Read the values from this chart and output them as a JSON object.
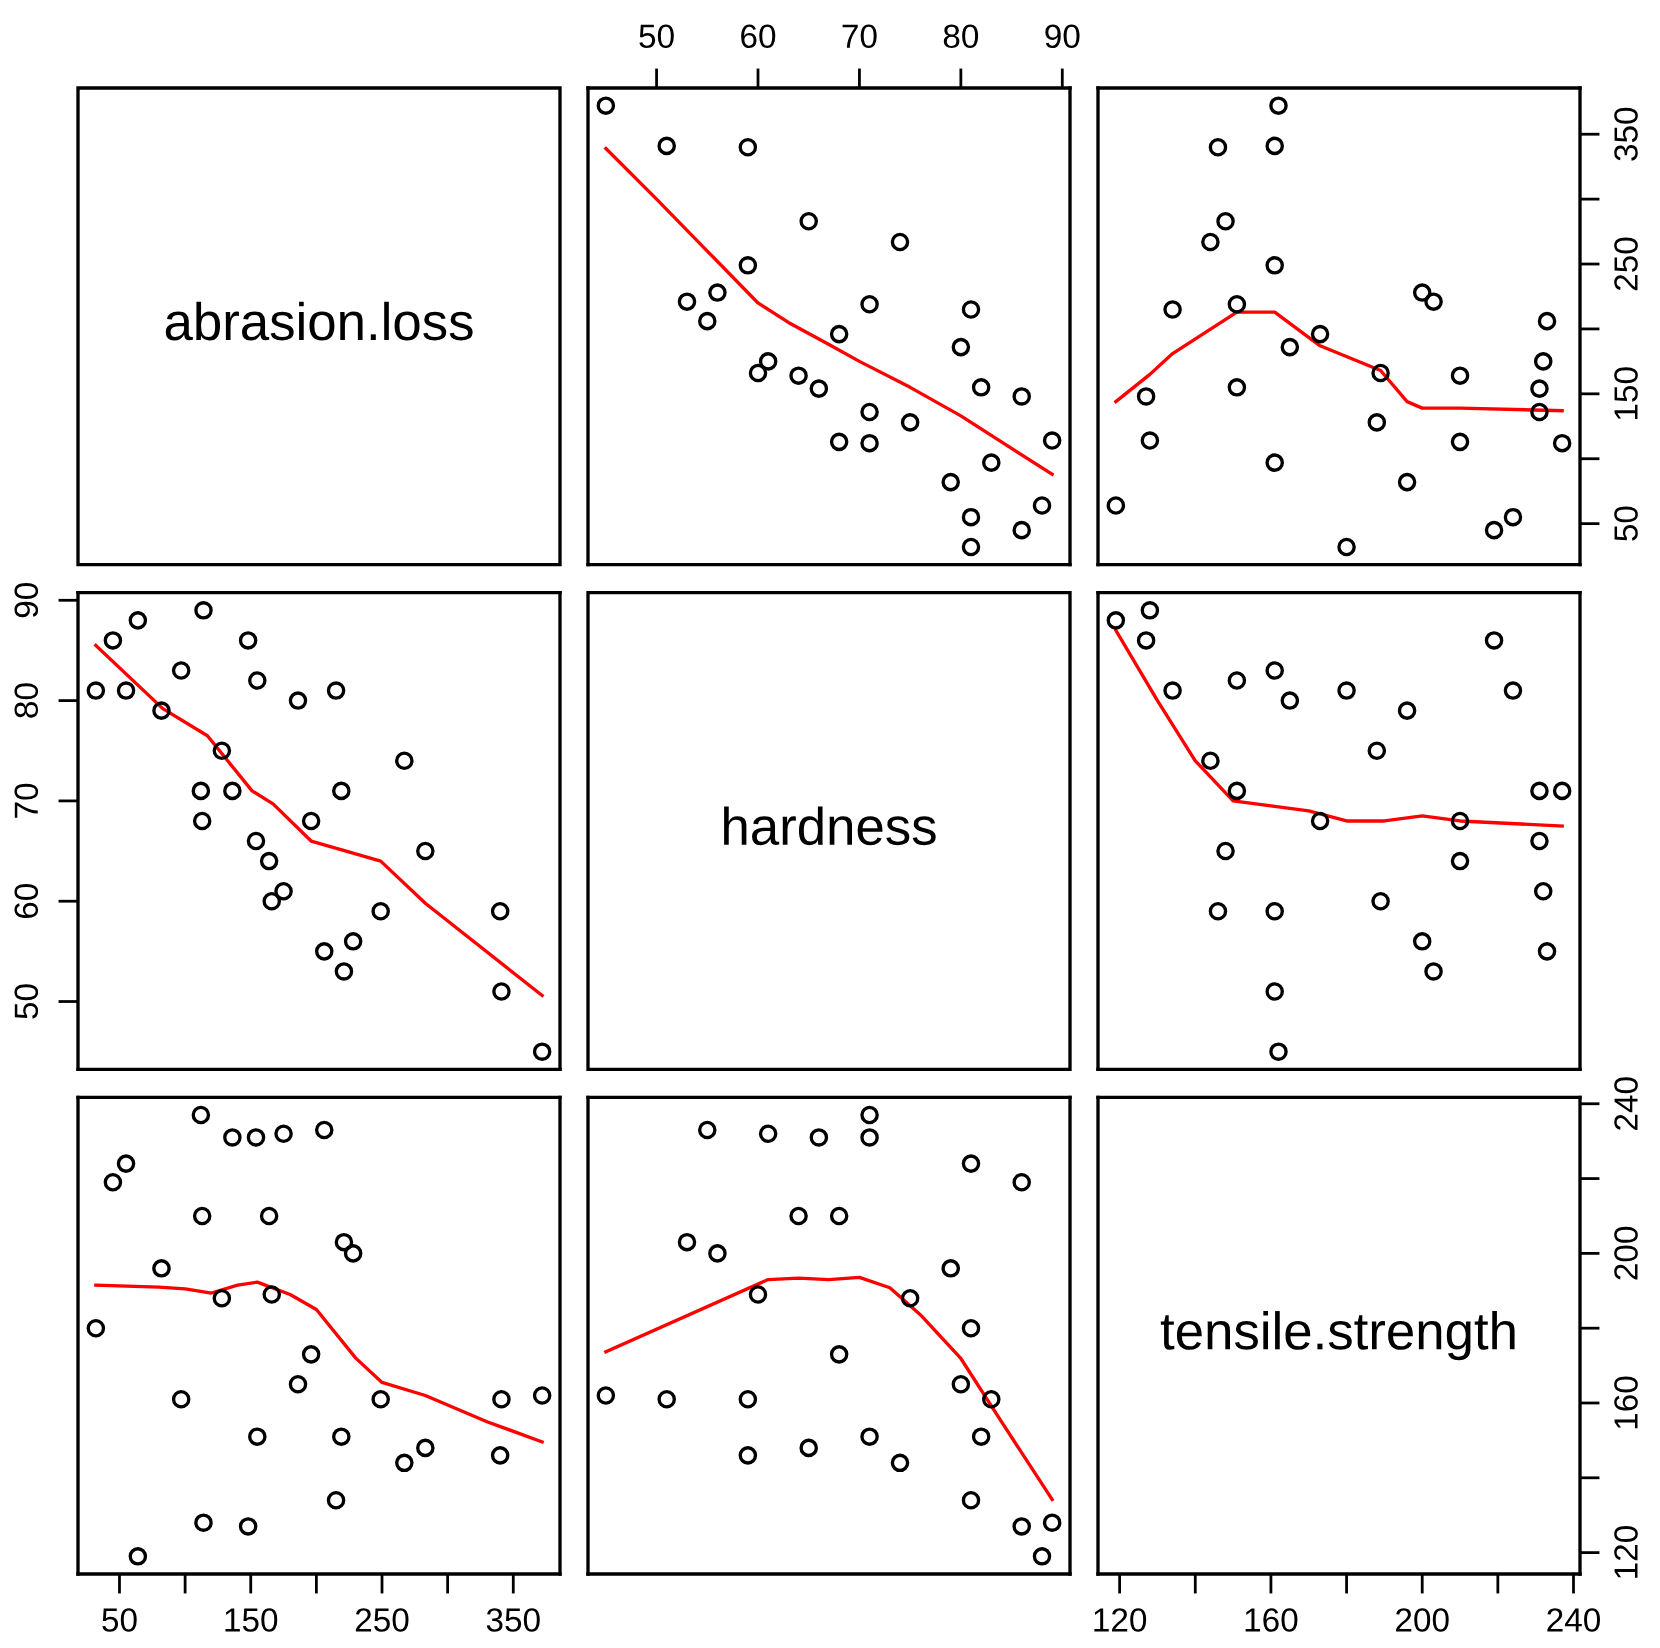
{
  "chart_data": [
    {
      "type": "other",
      "title": "abrasion.loss"
    },
    {
      "type": "scatter",
      "xlim": [
        43.24,
        90.76
      ],
      "ylim": [
        18.4,
        385.6
      ],
      "xticks": [
        50,
        60,
        70,
        80,
        90
      ],
      "tick_labels": "x",
      "series": [
        {
          "type": "scatter",
          "marker": "circle",
          "color": "#000000",
          "x": [
            45,
            55,
            61,
            66,
            71,
            71,
            81,
            86,
            53,
            60,
            64,
            68,
            79,
            81,
            56,
            68,
            75,
            83,
            88,
            59,
            71,
            80,
            82,
            89,
            51,
            59,
            65,
            74,
            81,
            86
          ],
          "values": [
            372,
            206,
            175,
            154,
            136,
            112,
            55,
            45,
            221,
            166,
            164,
            113,
            82,
            32,
            228,
            196,
            128,
            97,
            64,
            249,
            219,
            186,
            155,
            114,
            341,
            340,
            283,
            267,
            215,
            148
          ]
        },
        {
          "type": "line",
          "color": "#ff0000",
          "x": [
            45,
            50,
            55,
            60,
            63,
            67,
            70,
            75,
            80,
            85,
            89
          ],
          "values": [
            339,
            300,
            260,
            220,
            205,
            188,
            175,
            155,
            133,
            108,
            88
          ]
        }
      ]
    },
    {
      "type": "scatter",
      "xlim": [
        114.28,
        241.72
      ],
      "ylim": [
        18.4,
        385.6
      ],
      "yticks": [
        50,
        {
          "value": 100,
          "label": null
        },
        150,
        {
          "value": 200,
          "label": null
        },
        250,
        {
          "value": 300,
          "label": null
        },
        350
      ],
      "tick_labels": "y",
      "series": [
        {
          "type": "scatter",
          "marker": "circle",
          "color": "#000000",
          "x": [
            162,
            233,
            232,
            231,
            231,
            237,
            224,
            219,
            203,
            189,
            210,
            210,
            196,
            180,
            200,
            173,
            188,
            161,
            119,
            161,
            151,
            165,
            151,
            128,
            161,
            146,
            148,
            144,
            134,
            127
          ],
          "values": [
            372,
            206,
            175,
            154,
            136,
            112,
            55,
            45,
            221,
            166,
            164,
            113,
            82,
            32,
            228,
            196,
            128,
            97,
            64,
            249,
            219,
            186,
            155,
            114,
            341,
            340,
            283,
            267,
            215,
            148
          ]
        },
        {
          "type": "line",
          "color": "#ff0000",
          "x": [
            119,
            128,
            134,
            151,
            161,
            173,
            189,
            196,
            200,
            210,
            237
          ],
          "values": [
            144,
            165,
            181,
            213,
            213,
            187,
            168,
            144,
            139,
            139,
            137
          ]
        }
      ]
    },
    {
      "type": "scatter",
      "xlim": [
        18.4,
        385.6
      ],
      "ylim": [
        43.24,
        90.76
      ],
      "yticks": [
        50,
        60,
        70,
        80,
        90
      ],
      "tick_labels": "y",
      "series": [
        {
          "type": "scatter",
          "marker": "circle",
          "color": "#000000",
          "x": [
            372,
            206,
            175,
            154,
            136,
            112,
            55,
            45,
            221,
            166,
            164,
            113,
            82,
            32,
            228,
            196,
            128,
            97,
            64,
            249,
            219,
            186,
            155,
            114,
            341,
            340,
            283,
            267,
            215,
            148
          ],
          "values": [
            45,
            55,
            61,
            66,
            71,
            71,
            81,
            86,
            53,
            60,
            64,
            68,
            79,
            81,
            56,
            68,
            75,
            83,
            88,
            59,
            71,
            80,
            82,
            89,
            51,
            59,
            65,
            74,
            81,
            86
          ]
        },
        {
          "type": "line",
          "color": "#ff0000",
          "x": [
            32,
            83,
            117,
            151,
            167,
            196,
            220,
            249,
            283,
            372
          ],
          "values": [
            85.5,
            79.2,
            76.5,
            71,
            69.7,
            66,
            65.1,
            64,
            59.8,
            50.6
          ]
        }
      ]
    },
    {
      "type": "other",
      "title": "hardness"
    },
    {
      "type": "scatter",
      "xlim": [
        114.28,
        241.72
      ],
      "ylim": [
        43.24,
        90.76
      ],
      "tick_labels": false,
      "series": [
        {
          "type": "scatter",
          "marker": "circle",
          "color": "#000000",
          "x": [
            162,
            233,
            232,
            231,
            231,
            237,
            224,
            219,
            203,
            189,
            210,
            210,
            196,
            180,
            200,
            173,
            188,
            161,
            119,
            161,
            151,
            165,
            151,
            128,
            161,
            146,
            148,
            144,
            134,
            127
          ],
          "values": [
            45,
            55,
            61,
            66,
            71,
            71,
            81,
            86,
            53,
            60,
            64,
            68,
            79,
            81,
            56,
            68,
            75,
            83,
            88,
            59,
            71,
            80,
            82,
            89,
            51,
            59,
            65,
            74,
            81,
            86
          ]
        },
        {
          "type": "line",
          "color": "#ff0000",
          "x": [
            119,
            130,
            140,
            150,
            160,
            170,
            180,
            190,
            200,
            210,
            237
          ],
          "values": [
            87,
            80,
            74,
            70,
            69.5,
            69,
            68,
            68,
            68.5,
            68,
            67.5
          ]
        }
      ]
    },
    {
      "type": "scatter",
      "xlim": [
        18.4,
        385.6
      ],
      "ylim": [
        114.28,
        241.72
      ],
      "xticks": [
        50,
        {
          "value": 100,
          "label": null
        },
        150,
        {
          "value": 200,
          "label": null
        },
        250,
        {
          "value": 300,
          "label": null
        },
        350
      ],
      "tick_labels": "x",
      "series": [
        {
          "type": "scatter",
          "marker": "circle",
          "color": "#000000",
          "x": [
            372,
            206,
            175,
            154,
            136,
            112,
            55,
            45,
            221,
            166,
            164,
            113,
            82,
            32,
            228,
            196,
            128,
            97,
            64,
            249,
            219,
            186,
            155,
            114,
            341,
            340,
            283,
            267,
            215,
            148
          ],
          "values": [
            162,
            233,
            232,
            231,
            231,
            237,
            224,
            219,
            203,
            189,
            210,
            210,
            196,
            180,
            200,
            173,
            188,
            161,
            119,
            161,
            151,
            165,
            151,
            128,
            161,
            146,
            148,
            144,
            134,
            127
          ]
        },
        {
          "type": "line",
          "color": "#ff0000",
          "x": [
            32,
            80,
            100,
            120,
            140,
            155,
            180,
            200,
            230,
            250,
            283,
            330,
            372
          ],
          "values": [
            191.5,
            191,
            190.5,
            189.4,
            191.5,
            192.3,
            189,
            185,
            172,
            165.5,
            162,
            155,
            149.6
          ]
        }
      ]
    },
    {
      "type": "scatter",
      "xlim": [
        43.24,
        90.76
      ],
      "ylim": [
        114.28,
        241.72
      ],
      "tick_labels": false,
      "series": [
        {
          "type": "scatter",
          "marker": "circle",
          "color": "#000000",
          "x": [
            45,
            55,
            61,
            66,
            71,
            71,
            81,
            86,
            53,
            60,
            64,
            68,
            79,
            81,
            56,
            68,
            75,
            83,
            88,
            59,
            71,
            80,
            82,
            89,
            51,
            59,
            65,
            74,
            81,
            86
          ],
          "values": [
            162,
            233,
            232,
            231,
            231,
            237,
            224,
            219,
            203,
            189,
            210,
            210,
            196,
            180,
            200,
            173,
            188,
            161,
            119,
            161,
            151,
            165,
            151,
            128,
            161,
            146,
            148,
            144,
            134,
            127
          ]
        },
        {
          "type": "line",
          "color": "#ff0000",
          "x": [
            45,
            61,
            64,
            67,
            70,
            73,
            76,
            80,
            84,
            89
          ],
          "values": [
            173.7,
            193,
            193.4,
            193,
            193.6,
            190.8,
            183.6,
            171.9,
            155,
            134.2
          ]
        }
      ]
    },
    {
      "type": "scatter",
      "title": "tensile.strength",
      "xlim": [
        114.28,
        241.72
      ],
      "ylim": [
        114.28,
        241.72
      ],
      "xticks": [
        120,
        {
          "value": 140,
          "label": null
        },
        160,
        {
          "value": 180,
          "label": null
        },
        200,
        {
          "value": 220,
          "label": null
        },
        240
      ],
      "yticks": [
        120,
        {
          "value": 140,
          "label": null
        },
        160,
        {
          "value": 180,
          "label": null
        },
        200,
        {
          "value": 220,
          "label": null
        },
        240
      ]
    }
  ]
}
